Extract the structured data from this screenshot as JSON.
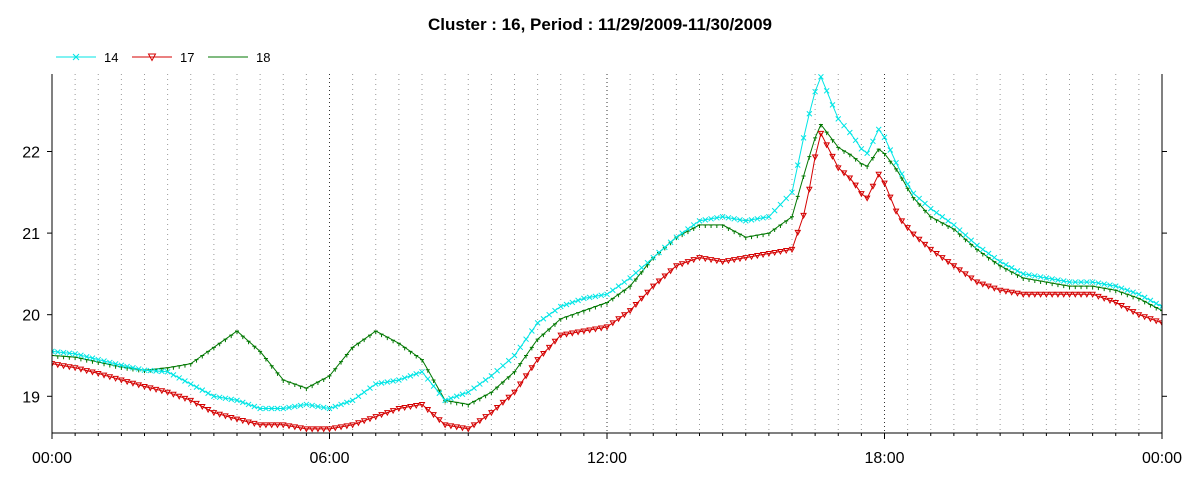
{
  "chart_data": {
    "type": "line",
    "title": "Cluster : 16, Period : 11/29/2009-11/30/2009",
    "xlabel": "",
    "ylabel": "",
    "x_range": [
      "00:00",
      "24:00"
    ],
    "ylim": [
      18.55,
      22.95
    ],
    "x_tick_labels": [
      "00:00",
      "06:00",
      "12:00",
      "18:00",
      "00:00"
    ],
    "y_tick_labels": [
      "19",
      "20",
      "21",
      "22"
    ],
    "y_tick_values": [
      19,
      20,
      21,
      22
    ],
    "grid": "dotted",
    "legend_position": "top-left",
    "x_unit": "hours",
    "series": [
      {
        "name": "14",
        "color": "#00e5e5",
        "marker": "x",
        "x": [
          0,
          0.5,
          1,
          1.5,
          2,
          2.5,
          3,
          3.5,
          4,
          4.5,
          5,
          5.5,
          6,
          6.5,
          7,
          7.5,
          8,
          8.5,
          9,
          9.5,
          10,
          10.5,
          11,
          11.5,
          12,
          12.5,
          13,
          13.5,
          14,
          14.5,
          15,
          15.5,
          16,
          16.3,
          16.6,
          17,
          17.3,
          17.6,
          17.9,
          18.3,
          18.6,
          19,
          19.5,
          20,
          20.5,
          21,
          21.5,
          22,
          22.5,
          23,
          23.5,
          24
        ],
        "values": [
          19.55,
          19.52,
          19.45,
          19.38,
          19.32,
          19.3,
          19.15,
          19.0,
          18.95,
          18.85,
          18.85,
          18.9,
          18.85,
          18.95,
          19.15,
          19.2,
          19.3,
          18.95,
          19.05,
          19.25,
          19.5,
          19.9,
          20.1,
          20.2,
          20.25,
          20.45,
          20.7,
          20.95,
          21.15,
          21.2,
          21.15,
          21.2,
          21.5,
          22.3,
          22.95,
          22.4,
          22.2,
          21.95,
          22.3,
          21.8,
          21.5,
          21.3,
          21.1,
          20.85,
          20.65,
          20.5,
          20.45,
          20.4,
          20.4,
          20.35,
          20.25,
          20.1
        ]
      },
      {
        "name": "17",
        "color": "#d40000",
        "marker": "triangle-down",
        "x": [
          0,
          0.5,
          1,
          1.5,
          2,
          2.5,
          3,
          3.5,
          4,
          4.5,
          5,
          5.5,
          6,
          6.5,
          7,
          7.5,
          8,
          8.5,
          9,
          9.5,
          10,
          10.5,
          11,
          11.5,
          12,
          12.5,
          13,
          13.5,
          14,
          14.5,
          15,
          15.5,
          16,
          16.3,
          16.6,
          17,
          17.3,
          17.6,
          17.9,
          18.3,
          18.6,
          19,
          19.5,
          20,
          20.5,
          21,
          21.5,
          22,
          22.5,
          23,
          23.5,
          24
        ],
        "values": [
          19.4,
          19.35,
          19.28,
          19.2,
          19.12,
          19.05,
          18.95,
          18.8,
          18.72,
          18.65,
          18.65,
          18.6,
          18.6,
          18.65,
          18.75,
          18.85,
          18.9,
          18.65,
          18.6,
          18.8,
          19.05,
          19.45,
          19.75,
          19.8,
          19.85,
          20.05,
          20.35,
          20.6,
          20.7,
          20.65,
          20.7,
          20.75,
          20.8,
          21.3,
          22.25,
          21.8,
          21.65,
          21.4,
          21.75,
          21.2,
          21.0,
          20.8,
          20.6,
          20.4,
          20.3,
          20.25,
          20.25,
          20.25,
          20.25,
          20.15,
          20.0,
          19.9
        ]
      },
      {
        "name": "18",
        "color": "#007700",
        "marker": "tick",
        "x": [
          0,
          0.5,
          1,
          1.5,
          2,
          2.5,
          3,
          3.5,
          4,
          4.5,
          5,
          5.5,
          6,
          6.5,
          7,
          7.5,
          8,
          8.5,
          9,
          9.5,
          10,
          10.5,
          11,
          11.5,
          12,
          12.5,
          13,
          13.5,
          14,
          14.5,
          15,
          15.5,
          16,
          16.3,
          16.6,
          17,
          17.3,
          17.6,
          17.9,
          18.3,
          18.6,
          19,
          19.5,
          20,
          20.5,
          21,
          21.5,
          22,
          22.5,
          23,
          23.5,
          24
        ],
        "values": [
          19.5,
          19.48,
          19.42,
          19.36,
          19.32,
          19.35,
          19.4,
          19.6,
          19.8,
          19.55,
          19.2,
          19.1,
          19.25,
          19.6,
          19.8,
          19.65,
          19.45,
          18.95,
          18.9,
          19.05,
          19.3,
          19.7,
          19.95,
          20.05,
          20.15,
          20.35,
          20.7,
          20.95,
          21.1,
          21.1,
          20.95,
          21.0,
          21.2,
          21.8,
          22.35,
          22.05,
          21.95,
          21.8,
          22.05,
          21.75,
          21.45,
          21.2,
          21.05,
          20.8,
          20.6,
          20.45,
          20.4,
          20.35,
          20.35,
          20.3,
          20.2,
          20.05
        ]
      }
    ]
  }
}
